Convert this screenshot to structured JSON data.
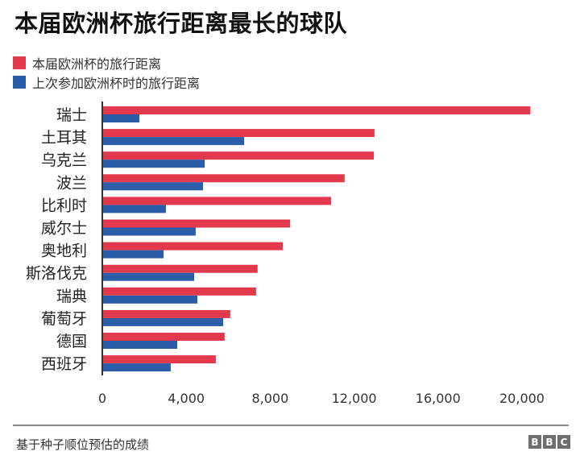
{
  "chart_data": {
    "type": "bar",
    "orientation": "horizontal",
    "title": "本届欧洲杯旅行距离最长的球队",
    "xlabel": "",
    "ylabel": "",
    "xlim": [
      0,
      20000
    ],
    "xticks": [
      0,
      4000,
      8000,
      12000,
      16000,
      20000
    ],
    "xtick_labels": [
      "0",
      "4,000",
      "8,000",
      "12,000",
      "16,000",
      "20,000"
    ],
    "grid": false,
    "legend_position": "top-left",
    "categories": [
      "瑞士",
      "土耳其",
      "乌克兰",
      "波兰",
      "比利时",
      "威尔士",
      "奥地利",
      "斯洛伐克",
      "瑞典",
      "葡萄牙",
      "德国",
      "西班牙"
    ],
    "series": [
      {
        "name": "本届欧洲杯的旅行距离",
        "color": "#e23a4c",
        "values": [
          20400,
          12970,
          12940,
          11550,
          10900,
          8950,
          8600,
          7400,
          7330,
          6100,
          5830,
          5410
        ]
      },
      {
        "name": "上次参加欧洲杯时的旅行距离",
        "color": "#2b5ca8",
        "values": [
          1770,
          6760,
          4880,
          4800,
          3030,
          4450,
          2920,
          4380,
          4530,
          5760,
          3570,
          3260
        ]
      }
    ]
  },
  "footer": {
    "source": "基于种子顺位预估的成绩",
    "logo": [
      "B",
      "B",
      "C"
    ]
  }
}
